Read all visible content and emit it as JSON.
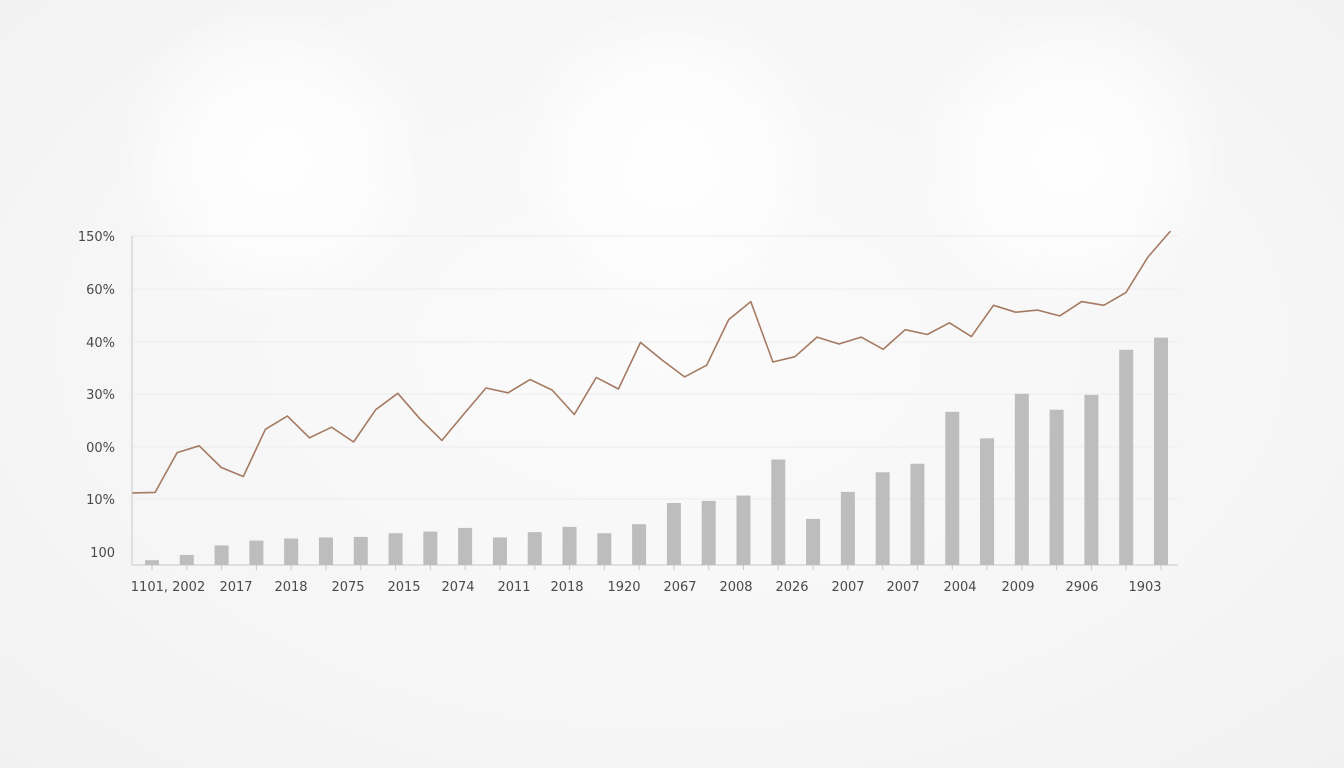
{
  "chart_data": {
    "type": "bar",
    "title": "",
    "xlabel": "",
    "ylabel": "",
    "y_tick_labels": [
      "100",
      "10%",
      "00%",
      "30%",
      "40%",
      "60%",
      "150%"
    ],
    "x_tick_labels": [
      "1101, 2002",
      "2017",
      "2018",
      "2075",
      "2015",
      "2074",
      "2011",
      "2018",
      "1920",
      "2067",
      "2008",
      "2026",
      "2007",
      "2007",
      "2004",
      "2009",
      "2906",
      "1903"
    ],
    "grid": true,
    "colors": {
      "bars": "#bdbdbd",
      "line": "#a57a62",
      "axis": "#c8c8c8",
      "grid": "#ececec"
    },
    "series": [
      {
        "type": "bar",
        "values": [
          0.09,
          0.19,
          0.37,
          0.46,
          0.5,
          0.52,
          0.53,
          0.6,
          0.63,
          0.7,
          0.52,
          0.62,
          0.72,
          0.6,
          0.77,
          1.17,
          1.21,
          1.31,
          1.99,
          0.87,
          1.38,
          1.75,
          1.91,
          2.89,
          2.39,
          3.23,
          2.93,
          3.21,
          4.06,
          4.29
        ]
      },
      {
        "type": "line",
        "values": [
          1.36,
          1.37,
          2.12,
          2.25,
          1.84,
          1.67,
          2.56,
          2.81,
          2.4,
          2.6,
          2.32,
          2.93,
          3.24,
          2.76,
          2.35,
          2.85,
          3.34,
          3.25,
          3.5,
          3.3,
          2.84,
          3.54,
          3.32,
          4.2,
          3.86,
          3.55,
          3.77,
          4.63,
          4.97,
          3.83,
          3.93,
          4.3,
          4.17,
          4.3,
          4.07,
          4.44,
          4.35,
          4.57,
          4.31,
          4.9,
          4.77,
          4.81,
          4.7,
          4.97,
          4.9,
          5.14,
          5.81,
          6.29
        ]
      }
    ]
  }
}
